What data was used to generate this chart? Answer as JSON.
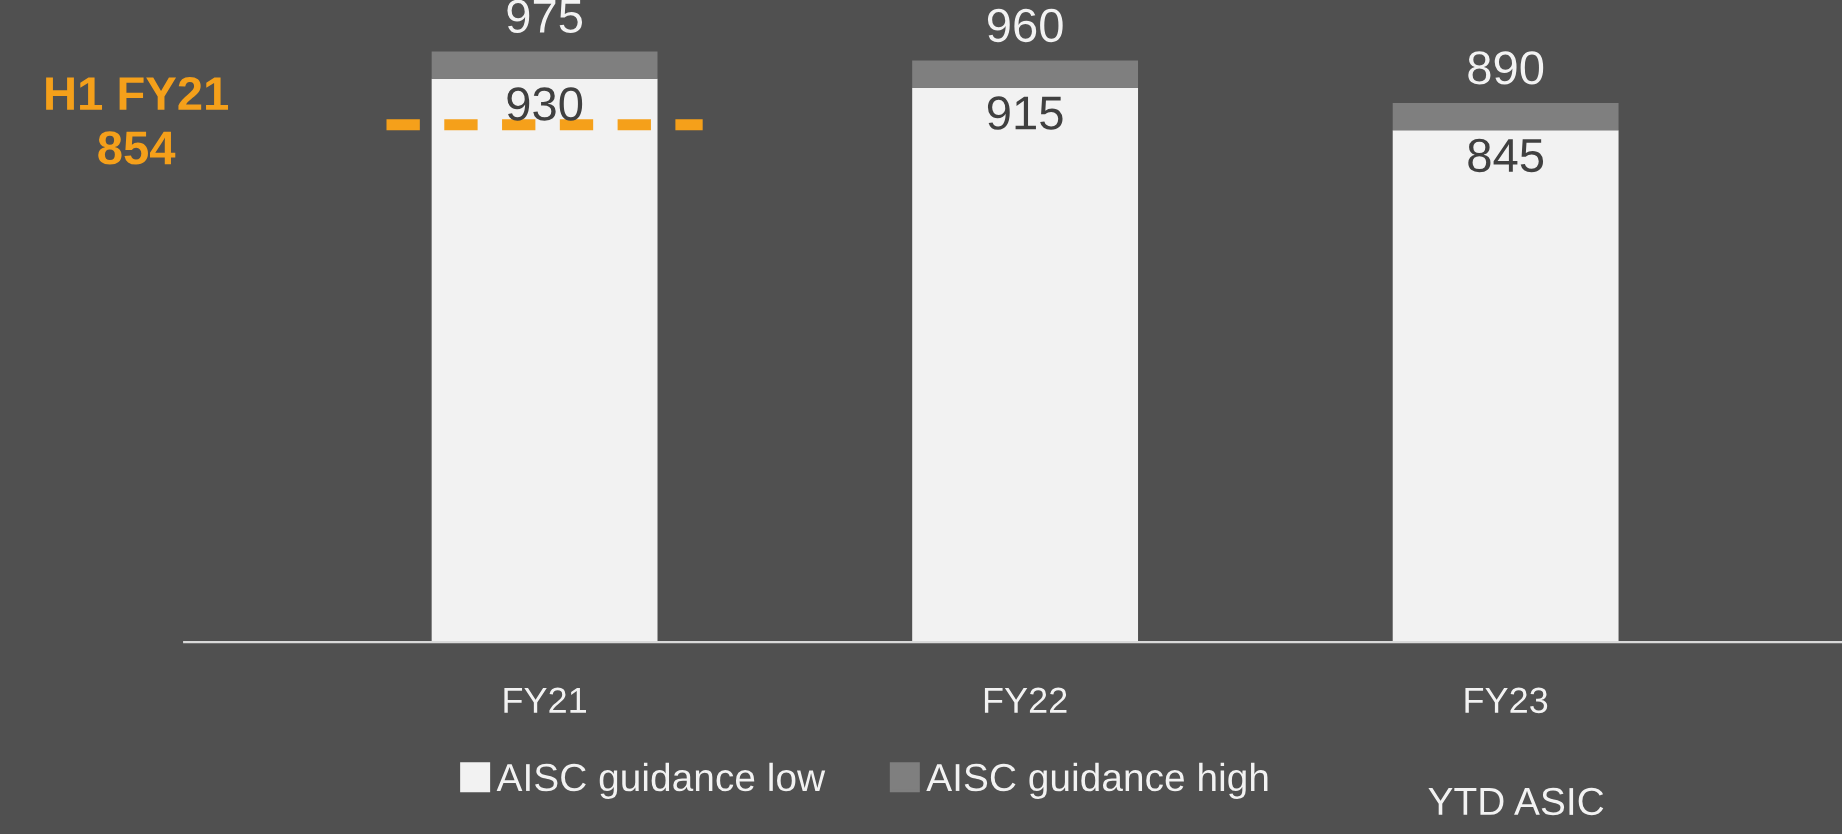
{
  "chart_data": {
    "type": "bar",
    "stacked": true,
    "categories": [
      "FY21",
      "FY22",
      "FY23"
    ],
    "series": [
      {
        "name": "AISC guidance low",
        "color": "#f2f2f2",
        "values": [
          930,
          915,
          845
        ],
        "value_labels": [
          "930",
          "915",
          "845"
        ]
      },
      {
        "name": "AISC guidance high",
        "color": "#7f7f7f",
        "values": [
          45,
          45,
          45
        ]
      }
    ],
    "totals": [
      "975",
      "960",
      "890"
    ],
    "ref_lines": [
      {
        "axis": "y",
        "value": 854,
        "label": "H1 FY21\n854",
        "color": "#f5a01a",
        "line_style": "dashed"
      }
    ],
    "annotations": [
      "YTD ASIC"
    ],
    "legend": "bottom",
    "grid": false
  }
}
